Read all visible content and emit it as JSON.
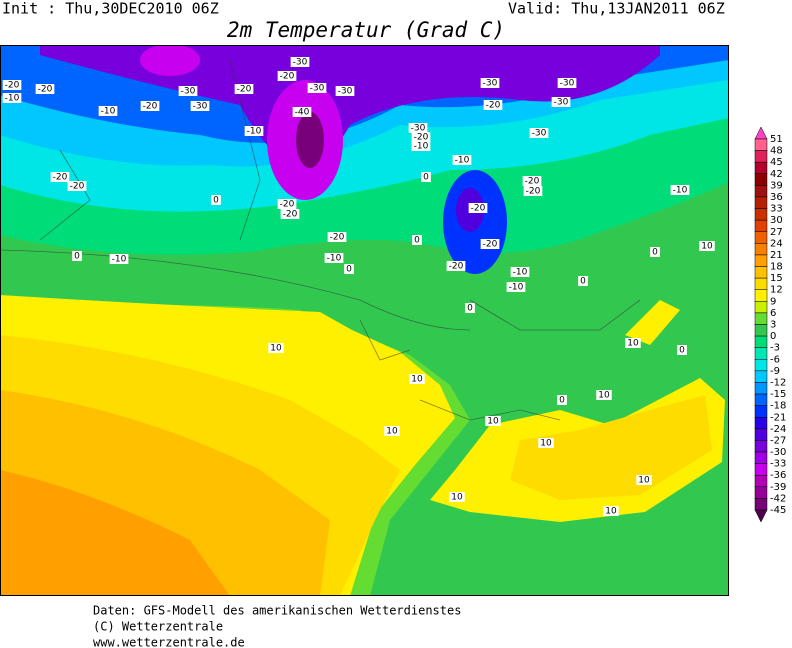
{
  "header": {
    "init": "Init : Thu,30DEC2010 06Z",
    "valid": "Valid: Thu,13JAN2011 06Z",
    "title": "2m Temperatur (Grad C)"
  },
  "contour_labels": [
    -20,
    -10,
    -20,
    -30,
    -20,
    -30,
    -30,
    -30,
    -30,
    -20,
    -20,
    -10,
    -40,
    -10,
    -30,
    -20,
    -10,
    -30,
    -30,
    -20,
    -30,
    -30,
    -10,
    -20,
    -20,
    0,
    0,
    -20,
    -20,
    -20,
    -10,
    -20,
    -20,
    -20,
    -10,
    0,
    0,
    -20,
    -20,
    -10,
    -10,
    0,
    0,
    10,
    0,
    -10,
    0,
    10,
    10,
    0,
    10,
    0,
    10,
    10,
    10,
    10,
    10,
    10,
    10
  ],
  "colorbar": {
    "levels": [
      51,
      48,
      45,
      42,
      39,
      36,
      33,
      30,
      27,
      24,
      21,
      18,
      15,
      12,
      9,
      6,
      3,
      0,
      -3,
      -6,
      -9,
      -12,
      -15,
      -18,
      -21,
      -24,
      -27,
      -30,
      -33,
      -36,
      -39,
      -42,
      -45
    ],
    "colors": [
      "#ff40c8",
      "#ff6090",
      "#e0205a",
      "#b4002d",
      "#8c0000",
      "#a01010",
      "#b42000",
      "#c83000",
      "#e04000",
      "#f06000",
      "#f88000",
      "#ffa000",
      "#ffc000",
      "#ffdc00",
      "#fff000",
      "#c8f000",
      "#64dc32",
      "#32c850",
      "#00dc78",
      "#00e6b4",
      "#00e6e6",
      "#00c8ff",
      "#0096ff",
      "#0064ff",
      "#0032ff",
      "#2800e6",
      "#5000dc",
      "#7800dc",
      "#a000e6",
      "#c800f0",
      "#b400b4",
      "#960096",
      "#780078",
      "#500050"
    ]
  },
  "footer": {
    "line1": "Daten: GFS-Modell des amerikanischen Wetterdienstes",
    "line2": "(C) Wetterzentrale",
    "line3": "www.wetterzentrale.de"
  }
}
